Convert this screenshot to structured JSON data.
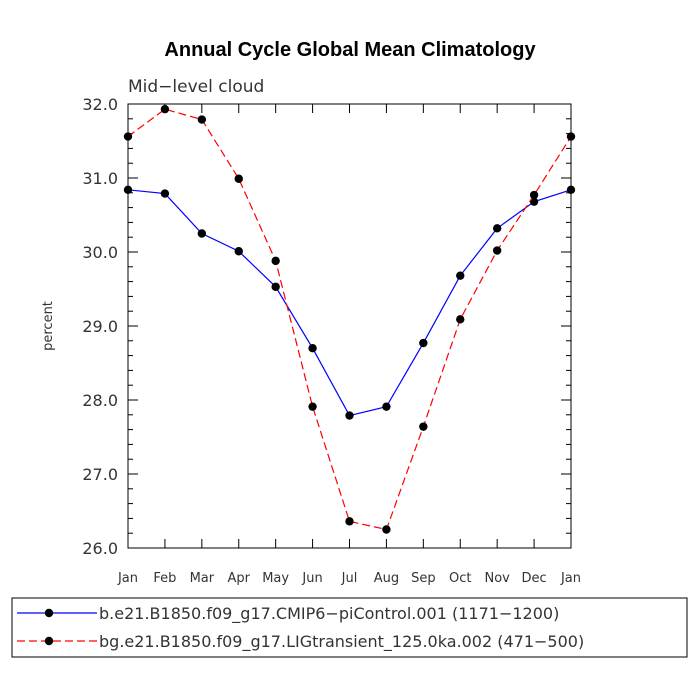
{
  "chart_data": {
    "type": "line",
    "title": "Annual Cycle Global Mean Climatology",
    "subtitle": "Mid−level cloud",
    "ylabel": "percent",
    "xlabel": "",
    "categories": [
      "Jan",
      "Feb",
      "Mar",
      "Apr",
      "May",
      "Jun",
      "Jul",
      "Aug",
      "Sep",
      "Oct",
      "Nov",
      "Dec",
      "Jan"
    ],
    "ylim": [
      26.0,
      32.0
    ],
    "yticks": [
      "26.0",
      "27.0",
      "28.0",
      "29.0",
      "30.0",
      "31.0",
      "32.0"
    ],
    "series": [
      {
        "name": "b.e21.B1850.f09_g17.CMIP6−piControl.001 (1171−1200)",
        "color": "#0000ff",
        "dash": "solid",
        "values": [
          30.84,
          30.79,
          30.25,
          30.01,
          29.53,
          28.7,
          27.79,
          27.91,
          28.77,
          29.68,
          30.32,
          30.68,
          30.84
        ]
      },
      {
        "name": "bg.e21.B1850.f09_g17.LIGtransient_125.0ka.002 (471−500)",
        "color": "#ff0000",
        "dash": "dashed",
        "values": [
          31.56,
          31.93,
          31.79,
          30.99,
          29.88,
          27.91,
          26.36,
          26.25,
          27.64,
          29.09,
          30.02,
          30.77,
          31.56
        ]
      }
    ],
    "legend_position": "bottom",
    "grid": false
  }
}
